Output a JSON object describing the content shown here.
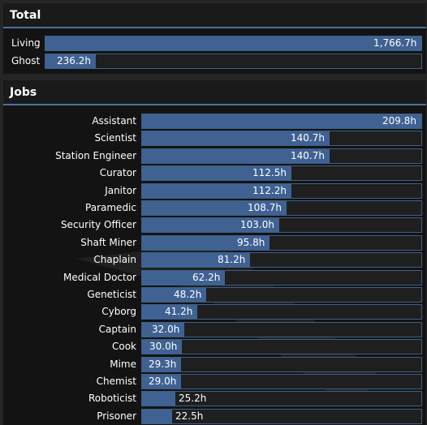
{
  "total": {
    "title": "Total",
    "max_value": 1766.7,
    "rows": [
      {
        "label": "Living",
        "value": 1766.7,
        "display": "1,766.7h"
      },
      {
        "label": "Ghost",
        "value": 236.2,
        "display": "236.2h"
      }
    ]
  },
  "jobs": {
    "title": "Jobs",
    "max_value": 209.8,
    "rows": [
      {
        "label": "Assistant",
        "value": 209.8,
        "display": "209.8h"
      },
      {
        "label": "Scientist",
        "value": 140.7,
        "display": "140.7h"
      },
      {
        "label": "Station Engineer",
        "value": 140.7,
        "display": "140.7h"
      },
      {
        "label": "Curator",
        "value": 112.5,
        "display": "112.5h"
      },
      {
        "label": "Janitor",
        "value": 112.2,
        "display": "112.2h"
      },
      {
        "label": "Paramedic",
        "value": 108.7,
        "display": "108.7h"
      },
      {
        "label": "Security Officer",
        "value": 103.0,
        "display": "103.0h"
      },
      {
        "label": "Shaft Miner",
        "value": 95.8,
        "display": "95.8h"
      },
      {
        "label": "Chaplain",
        "value": 81.2,
        "display": "81.2h"
      },
      {
        "label": "Medical Doctor",
        "value": 62.2,
        "display": "62.2h"
      },
      {
        "label": "Geneticist",
        "value": 48.2,
        "display": "48.2h"
      },
      {
        "label": "Cyborg",
        "value": 41.2,
        "display": "41.2h"
      },
      {
        "label": "Captain",
        "value": 32.0,
        "display": "32.0h"
      },
      {
        "label": "Cook",
        "value": 30.0,
        "display": "30.0h"
      },
      {
        "label": "Mime",
        "value": 29.3,
        "display": "29.3h"
      },
      {
        "label": "Chemist",
        "value": 29.0,
        "display": "29.0h"
      },
      {
        "label": "Roboticist",
        "value": 25.2,
        "display": "25.2h"
      },
      {
        "label": "Prisoner",
        "value": 22.5,
        "display": "22.5h"
      }
    ]
  },
  "colors": {
    "bar_fill": "#3f6292",
    "bar_track": "#1f1f1f",
    "accent": "#4972a1"
  }
}
